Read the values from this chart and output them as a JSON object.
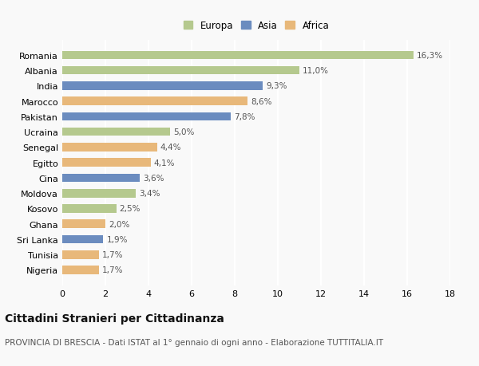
{
  "categories": [
    "Romania",
    "Albania",
    "India",
    "Marocco",
    "Pakistan",
    "Ucraina",
    "Senegal",
    "Egitto",
    "Cina",
    "Moldova",
    "Kosovo",
    "Ghana",
    "Sri Lanka",
    "Tunisia",
    "Nigeria"
  ],
  "values": [
    16.3,
    11.0,
    9.3,
    8.6,
    7.8,
    5.0,
    4.4,
    4.1,
    3.6,
    3.4,
    2.5,
    2.0,
    1.9,
    1.7,
    1.7
  ],
  "labels": [
    "16,3%",
    "11,0%",
    "9,3%",
    "8,6%",
    "7,8%",
    "5,0%",
    "4,4%",
    "4,1%",
    "3,6%",
    "3,4%",
    "2,5%",
    "2,0%",
    "1,9%",
    "1,7%",
    "1,7%"
  ],
  "continents": [
    "Europa",
    "Europa",
    "Asia",
    "Africa",
    "Asia",
    "Europa",
    "Africa",
    "Africa",
    "Asia",
    "Europa",
    "Europa",
    "Africa",
    "Asia",
    "Africa",
    "Africa"
  ],
  "colors": {
    "Europa": "#b5c98e",
    "Asia": "#6b8cbf",
    "Africa": "#e8b87a"
  },
  "legend_labels": [
    "Europa",
    "Asia",
    "Africa"
  ],
  "xlim": [
    0,
    18
  ],
  "xticks": [
    0,
    2,
    4,
    6,
    8,
    10,
    12,
    14,
    16,
    18
  ],
  "title": "Cittadini Stranieri per Cittadinanza",
  "subtitle": "PROVINCIA DI BRESCIA - Dati ISTAT al 1° gennaio di ogni anno - Elaborazione TUTTITALIA.IT",
  "bg_color": "#f9f9f9",
  "grid_color": "#ffffff",
  "bar_height": 0.55,
  "label_fontsize": 7.5,
  "axis_label_fontsize": 8,
  "title_fontsize": 10,
  "subtitle_fontsize": 7.5
}
